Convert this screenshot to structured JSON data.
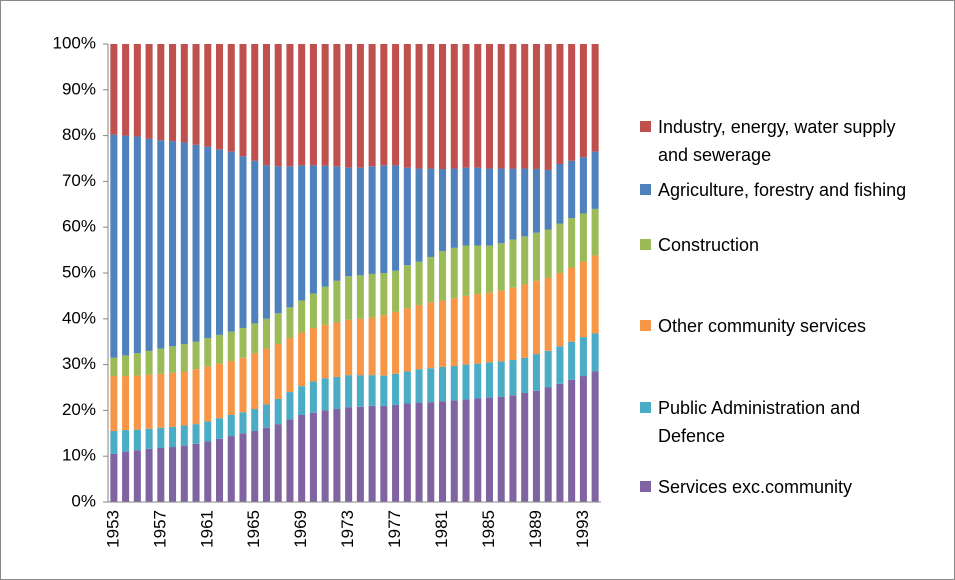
{
  "chart_data": {
    "type": "stacked_bar_100",
    "categories": [
      "1953",
      null,
      null,
      null,
      "1957",
      null,
      null,
      null,
      "1961",
      null,
      null,
      null,
      "1965",
      null,
      null,
      null,
      "1969",
      null,
      null,
      null,
      "1973",
      null,
      null,
      null,
      "1977",
      null,
      null,
      null,
      "1981",
      null,
      null,
      null,
      "1985",
      null,
      null,
      null,
      "1989",
      null,
      null,
      null,
      "1993",
      null
    ],
    "series": [
      {
        "name": "Services exc.community",
        "color": "#8064a2",
        "values": [
          10.5,
          11,
          11.3,
          11.6,
          11.8,
          12,
          12.3,
          12.7,
          13.2,
          13.8,
          14.4,
          15,
          15.5,
          16.2,
          17,
          18,
          19,
          19.5,
          20,
          20.3,
          20.7,
          20.8,
          21,
          21,
          21.2,
          21.5,
          21.7,
          21.8,
          22,
          22.2,
          22.4,
          22.6,
          22.8,
          23,
          23.3,
          23.8,
          24.3,
          25,
          25.8,
          26.7,
          27.5,
          28.5
        ]
      },
      {
        "name": "Public Administration and Defence",
        "color": "#4bacc6",
        "values": [
          5.0,
          4.7,
          4.5,
          4.4,
          4.4,
          4.4,
          4.4,
          4.3,
          4.4,
          4.5,
          4.6,
          4.6,
          4.8,
          5.1,
          5.5,
          6.0,
          6.3,
          6.8,
          7.0,
          7.0,
          7.0,
          6.9,
          6.7,
          6.6,
          6.8,
          7.0,
          7.3,
          7.4,
          7.5,
          7.5,
          7.6,
          7.6,
          7.7,
          7.7,
          7.7,
          7.7,
          8.0,
          8.0,
          8.2,
          8.3,
          8.5,
          8.3
        ]
      },
      {
        "name": "Other community services",
        "color": "#f79646",
        "values": [
          12.0,
          11.8,
          11.8,
          11.8,
          11.8,
          11.8,
          11.8,
          12.0,
          12.0,
          11.9,
          11.8,
          11.9,
          12.2,
          12.2,
          12.0,
          11.8,
          11.7,
          11.7,
          11.7,
          11.9,
          12.1,
          12.3,
          12.6,
          13.2,
          13.5,
          13.8,
          14.0,
          14.4,
          14.5,
          14.8,
          15.0,
          15.2,
          15.2,
          15.5,
          15.8,
          16.0,
          16.0,
          16.0,
          16.0,
          16.2,
          16.5,
          17.0
        ]
      },
      {
        "name": "Construction",
        "color": "#9bbb59",
        "values": [
          4.0,
          4.5,
          4.9,
          5.2,
          5.5,
          5.8,
          6.0,
          6.0,
          6.2,
          6.3,
          6.4,
          6.5,
          6.5,
          6.5,
          6.7,
          6.7,
          7.0,
          7.5,
          8.3,
          9.1,
          9.5,
          9.5,
          9.5,
          9.2,
          9.0,
          9.4,
          9.5,
          9.9,
          10.8,
          11.0,
          11.0,
          10.6,
          10.3,
          10.3,
          10.5,
          10.5,
          10.5,
          10.5,
          10.8,
          10.8,
          10.5,
          10.2
        ]
      },
      {
        "name": "Agriculture, forestry and fishing",
        "color": "#4f81bd",
        "values": [
          48.7,
          48.0,
          47.3,
          46.3,
          45.5,
          44.8,
          44.0,
          43.0,
          41.8,
          40.5,
          39.3,
          37.5,
          35.5,
          33.5,
          32.1,
          30.8,
          29.5,
          28.0,
          26.4,
          25.0,
          23.7,
          23.5,
          23.5,
          23.5,
          23.0,
          21.3,
          20.3,
          19.3,
          17.9,
          17.3,
          17.0,
          17.0,
          16.8,
          16.3,
          15.5,
          14.8,
          13.9,
          13.0,
          13.0,
          12.5,
          12.3,
          12.5
        ]
      },
      {
        "name": "Industry, energy, water supply and sewerage",
        "color": "#c0504d",
        "values": [
          19.8,
          20.0,
          20.2,
          20.7,
          21.0,
          21.2,
          21.5,
          22.0,
          22.4,
          23.0,
          23.5,
          24.5,
          25.5,
          26.5,
          26.7,
          26.7,
          26.5,
          26.5,
          26.6,
          26.7,
          27.0,
          27.0,
          26.7,
          26.5,
          26.5,
          27.0,
          27.2,
          27.2,
          27.3,
          27.2,
          27.0,
          27.0,
          27.2,
          27.2,
          27.2,
          27.2,
          27.3,
          27.5,
          26.2,
          25.5,
          24.7,
          23.5
        ]
      }
    ],
    "ylim": [
      0,
      100
    ],
    "yticks": [
      {
        "value": 0,
        "label": "0%"
      },
      {
        "value": 10,
        "label": "10%"
      },
      {
        "value": 20,
        "label": "20%"
      },
      {
        "value": 30,
        "label": "30%"
      },
      {
        "value": 40,
        "label": "40%"
      },
      {
        "value": 50,
        "label": "50%"
      },
      {
        "value": 60,
        "label": "60%"
      },
      {
        "value": 70,
        "label": "70%"
      },
      {
        "value": 80,
        "label": "80%"
      },
      {
        "value": 90,
        "label": "90%"
      },
      {
        "value": 100,
        "label": "100%"
      }
    ],
    "grid": false,
    "legend": "right"
  }
}
